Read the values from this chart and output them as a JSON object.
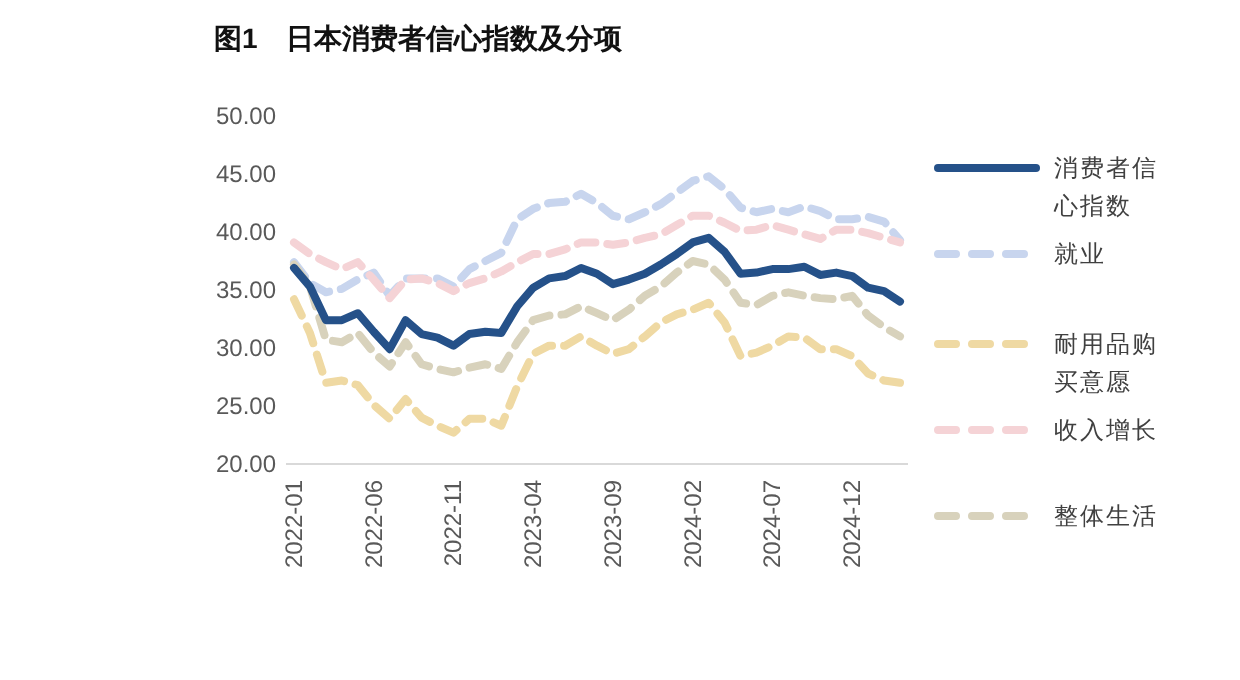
{
  "chart_data": {
    "type": "line",
    "title": "图1　日本消费者信心指数及分项",
    "categories": [
      "2022-01",
      null,
      null,
      null,
      null,
      "2022-06",
      null,
      null,
      null,
      null,
      "2022-11",
      null,
      null,
      null,
      null,
      "2023-04",
      null,
      null,
      null,
      null,
      "2023-09",
      null,
      null,
      null,
      null,
      "2024-02",
      null,
      null,
      null,
      null,
      "2024-07",
      null,
      null,
      null,
      null,
      "2024-12",
      null,
      null,
      null
    ],
    "ylim": [
      20,
      50
    ],
    "yticks": [
      {
        "value": 20,
        "label": "20.00"
      },
      {
        "value": 25,
        "label": "25.00"
      },
      {
        "value": 30,
        "label": "30.00"
      },
      {
        "value": 35,
        "label": "35.00"
      },
      {
        "value": 40,
        "label": "40.00"
      },
      {
        "value": 45,
        "label": "45.00"
      },
      {
        "value": 50,
        "label": "50.00"
      }
    ],
    "grid": false,
    "legend": "right",
    "marker": "none",
    "series": [
      {
        "name": "消费者信心指数",
        "color": "#255189",
        "line_style": "solid",
        "values": [
          36.9,
          35.3,
          32.4,
          32.4,
          33.0,
          31.4,
          29.9,
          32.4,
          31.2,
          30.9,
          30.2,
          31.2,
          31.4,
          31.3,
          33.6,
          35.2,
          36.0,
          36.2,
          36.9,
          36.4,
          35.5,
          35.9,
          36.4,
          37.2,
          38.1,
          39.1,
          39.5,
          38.3,
          36.4,
          36.5,
          36.8,
          36.8,
          37.0,
          36.3,
          36.5,
          36.2,
          35.2,
          34.9,
          34.0
        ]
      },
      {
        "name": "就业",
        "color": "#c8d5ee",
        "line_style": "dashed",
        "values": [
          37.4,
          35.6,
          34.8,
          35.1,
          35.9,
          36.5,
          34.5,
          36.0,
          36.0,
          36.0,
          35.3,
          36.8,
          37.5,
          38.2,
          41.1,
          42.0,
          42.5,
          42.6,
          43.3,
          42.5,
          41.4,
          41.1,
          41.7,
          42.4,
          43.4,
          44.4,
          44.8,
          43.7,
          42.1,
          41.7,
          42.0,
          41.7,
          42.2,
          41.8,
          41.1,
          41.1,
          41.3,
          40.9,
          39.3
        ]
      },
      {
        "name": "耐用品购买意愿",
        "color": "#efd9a3",
        "line_style": "dashed",
        "values": [
          34.2,
          31.3,
          27.0,
          27.2,
          26.8,
          25.1,
          23.9,
          25.6,
          24.0,
          23.3,
          22.7,
          23.9,
          23.9,
          23.3,
          26.7,
          29.5,
          30.2,
          30.2,
          31.0,
          30.2,
          29.5,
          29.9,
          31.0,
          32.2,
          32.9,
          33.3,
          33.9,
          32.2,
          29.3,
          29.6,
          30.2,
          31.0,
          30.9,
          29.9,
          29.9,
          29.3,
          27.8,
          27.2,
          27.0
        ]
      },
      {
        "name": "收入增长",
        "color": "#f5d3d6",
        "line_style": "dashed",
        "values": [
          39.1,
          38.1,
          37.4,
          36.8,
          37.4,
          35.9,
          34.3,
          35.9,
          36.0,
          35.6,
          34.9,
          35.6,
          36.0,
          36.6,
          37.4,
          38.1,
          38.1,
          38.5,
          39.1,
          39.1,
          38.9,
          39.1,
          39.5,
          39.8,
          40.6,
          41.4,
          41.4,
          40.8,
          40.1,
          40.2,
          40.6,
          40.2,
          39.8,
          39.4,
          40.2,
          40.2,
          39.9,
          39.5,
          39.1
        ]
      },
      {
        "name": "整体生活",
        "color": "#d8d2bc",
        "line_style": "dashed",
        "values": [
          37.2,
          35.3,
          30.7,
          30.5,
          31.3,
          29.6,
          28.4,
          30.5,
          28.6,
          28.2,
          27.9,
          28.3,
          28.6,
          28.2,
          30.5,
          32.4,
          32.8,
          32.9,
          33.6,
          33.0,
          32.4,
          33.3,
          34.5,
          35.3,
          36.5,
          37.5,
          37.2,
          35.9,
          33.9,
          33.7,
          34.5,
          34.8,
          34.5,
          34.3,
          34.2,
          34.5,
          32.8,
          31.8,
          31.0
        ]
      }
    ]
  }
}
